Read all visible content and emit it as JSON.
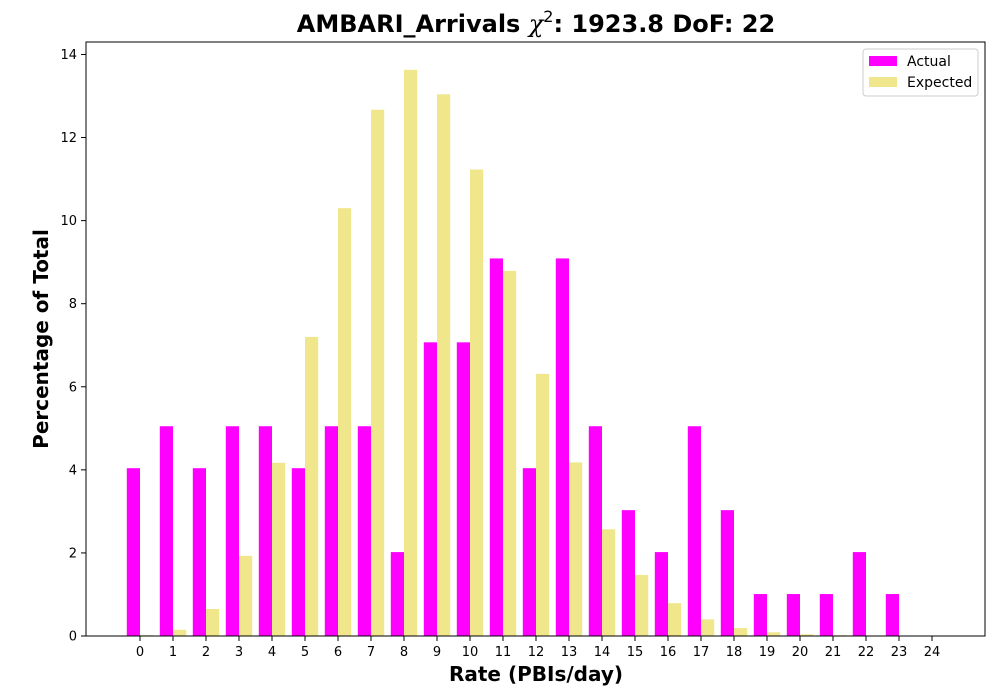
{
  "chart_data": {
    "type": "bar",
    "title": "AMBARI_Arrivals χ²: 1923.8 DoF: 22",
    "title_parts": {
      "prefix": "AMBARI_Arrivals ",
      "chi": "χ",
      "sup": "2",
      "suffix": ": 1923.8 DoF: 22"
    },
    "xlabel": "Rate (PBIs/day)",
    "ylabel": "Percentage of Total",
    "ylim": [
      0,
      14.3
    ],
    "yticks": [
      0,
      2,
      4,
      6,
      8,
      10,
      12,
      14
    ],
    "categories": [
      "0",
      "1",
      "2",
      "3",
      "4",
      "5",
      "6",
      "7",
      "8",
      "9",
      "10",
      "11",
      "12",
      "13",
      "14",
      "15",
      "16",
      "17",
      "18",
      "19",
      "20",
      "21",
      "22",
      "23",
      "24"
    ],
    "series": [
      {
        "name": "Actual",
        "color": "#ff00ff",
        "values": [
          4.04,
          5.05,
          4.04,
          5.05,
          5.05,
          4.04,
          5.05,
          5.05,
          2.02,
          7.07,
          7.07,
          9.09,
          4.04,
          9.09,
          5.05,
          3.03,
          2.02,
          5.05,
          3.03,
          1.01,
          1.01,
          1.01,
          2.02,
          1.01,
          0
        ]
      },
      {
        "name": "Expected",
        "color": "#f0e68c",
        "values": [
          0.02,
          0.15,
          0.65,
          1.93,
          4.17,
          7.2,
          10.3,
          12.67,
          13.63,
          13.04,
          11.23,
          8.79,
          6.31,
          4.18,
          2.57,
          1.47,
          0.79,
          0.4,
          0.19,
          0.09,
          0.04,
          0.02,
          0.01,
          0.0,
          0.0
        ]
      }
    ],
    "legend": {
      "placement": "top-right"
    },
    "grid": false
  }
}
